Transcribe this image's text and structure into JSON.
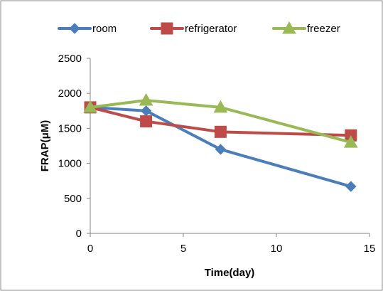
{
  "chart_data": {
    "type": "line",
    "xlabel": "Time(day)",
    "ylabel": "FRAP(μM)",
    "xlim": [
      0,
      15
    ],
    "ylim": [
      0,
      2500
    ],
    "xticks": [
      "0",
      "5",
      "10",
      "15"
    ],
    "yticks": [
      "0",
      "500",
      "1000",
      "1500",
      "2000",
      "2500"
    ],
    "legend_position": "top",
    "grid": false,
    "series": [
      {
        "name": "room",
        "color": "#4a7ebb",
        "marker": "diamond-icon",
        "x": [
          0,
          3,
          7,
          14
        ],
        "y": [
          1800,
          1750,
          1200,
          670
        ]
      },
      {
        "name": "refrigerator",
        "color": "#be4b48",
        "marker": "square-icon",
        "x": [
          0,
          3,
          7,
          14
        ],
        "y": [
          1800,
          1600,
          1450,
          1400
        ]
      },
      {
        "name": "freezer",
        "color": "#98b954",
        "marker": "triangle-icon",
        "x": [
          0,
          3,
          7,
          14
        ],
        "y": [
          1800,
          1900,
          1800,
          1300
        ]
      }
    ]
  }
}
